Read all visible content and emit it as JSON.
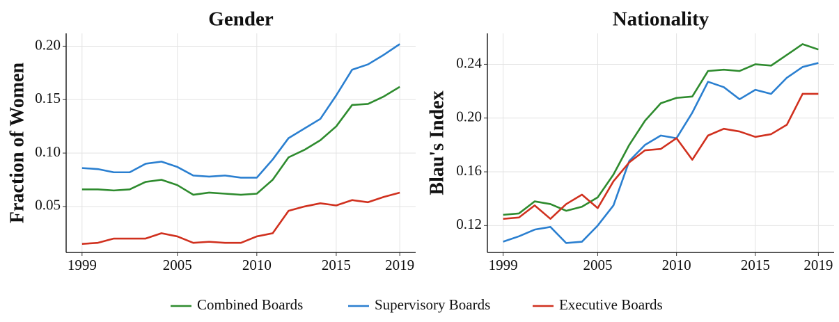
{
  "chart_data": [
    {
      "type": "line",
      "title": "Gender",
      "ylabel": "Fraction of Women",
      "x": [
        1999,
        2000,
        2001,
        2002,
        2003,
        2004,
        2005,
        2006,
        2007,
        2008,
        2009,
        2010,
        2011,
        2012,
        2013,
        2014,
        2015,
        2016,
        2017,
        2018,
        2019
      ],
      "series": [
        {
          "name": "Combined Boards",
          "color": "#2e8b2e",
          "values": [
            0.066,
            0.066,
            0.065,
            0.066,
            0.073,
            0.075,
            0.07,
            0.061,
            0.063,
            0.062,
            0.061,
            0.062,
            0.075,
            0.096,
            0.103,
            0.112,
            0.125,
            0.145,
            0.146,
            0.153,
            0.162
          ]
        },
        {
          "name": "Supervisory Boards",
          "color": "#2a7fd0",
          "values": [
            0.086,
            0.085,
            0.082,
            0.082,
            0.09,
            0.092,
            0.087,
            0.079,
            0.078,
            0.079,
            0.077,
            0.077,
            0.094,
            0.114,
            0.123,
            0.132,
            0.154,
            0.178,
            0.183,
            0.192,
            0.202
          ]
        },
        {
          "name": "Executive Boards",
          "color": "#d0301e",
          "values": [
            0.015,
            0.016,
            0.02,
            0.02,
            0.02,
            0.025,
            0.022,
            0.016,
            0.017,
            0.016,
            0.016,
            0.022,
            0.025,
            0.046,
            0.05,
            0.053,
            0.051,
            0.056,
            0.054,
            0.059,
            0.063
          ]
        }
      ],
      "xlim": [
        1998,
        2020
      ],
      "xticks": [
        1999,
        2005,
        2010,
        2015,
        2019
      ],
      "ylim": [
        0.007,
        0.212
      ],
      "yticks": [
        0.05,
        {
          "value": 0.1,
          "label": "0.10"
        },
        0.15,
        {
          "value": 0.2,
          "label": "0.20"
        }
      ],
      "grid": true,
      "legend": "bottom"
    },
    {
      "type": "line",
      "title": "Nationality",
      "ylabel": "Blau's Index",
      "x": [
        1999,
        2000,
        2001,
        2002,
        2003,
        2004,
        2005,
        2006,
        2007,
        2008,
        2009,
        2010,
        2011,
        2012,
        2013,
        2014,
        2015,
        2016,
        2017,
        2018,
        2019
      ],
      "series": [
        {
          "name": "Combined Boards",
          "color": "#2e8b2e",
          "values": [
            0.128,
            0.129,
            0.138,
            0.136,
            0.131,
            0.134,
            0.141,
            0.158,
            0.18,
            0.198,
            0.211,
            0.215,
            0.216,
            0.235,
            0.236,
            0.235,
            0.24,
            0.239,
            0.247,
            0.255,
            0.251
          ]
        },
        {
          "name": "Supervisory Boards",
          "color": "#2a7fd0",
          "values": [
            0.108,
            0.112,
            0.117,
            0.119,
            0.107,
            0.108,
            0.12,
            0.135,
            0.168,
            0.18,
            0.187,
            0.185,
            0.204,
            0.227,
            0.223,
            0.214,
            0.221,
            0.218,
            0.23,
            0.238,
            0.241
          ]
        },
        {
          "name": "Executive Boards",
          "color": "#d0301e",
          "values": [
            0.125,
            0.126,
            0.135,
            0.125,
            0.136,
            0.143,
            0.133,
            0.153,
            0.167,
            0.176,
            0.177,
            0.185,
            0.169,
            0.187,
            0.192,
            0.19,
            0.186,
            0.188,
            0.195,
            0.218,
            0.218
          ]
        }
      ],
      "xlim": [
        1998,
        2020
      ],
      "xticks": [
        1999,
        2005,
        2010,
        2015,
        2019
      ],
      "ylim": [
        0.1,
        0.263
      ],
      "yticks": [
        0.12,
        0.16,
        {
          "value": 0.2,
          "label": "0.20"
        },
        0.24
      ],
      "grid": true,
      "legend": "bottom"
    }
  ]
}
